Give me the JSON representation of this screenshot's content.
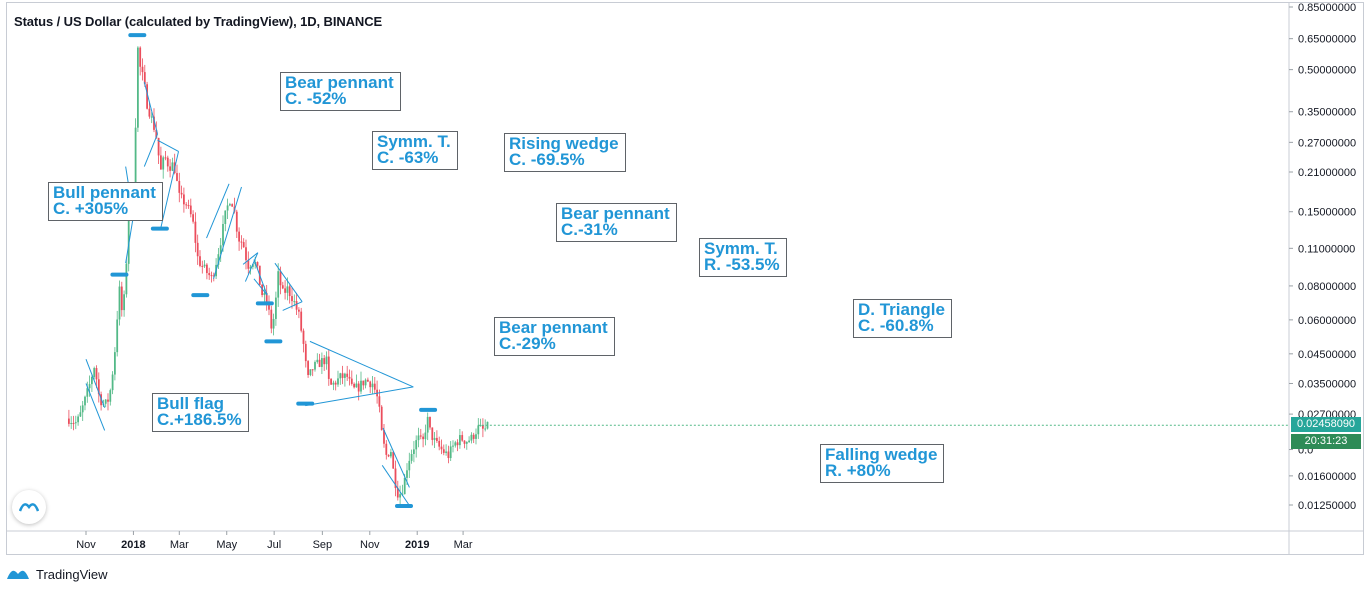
{
  "header": {
    "title": "Status / US Dollar (calculated by TradingView), 1D, BINANCE"
  },
  "footer": {
    "brand": "TradingView"
  },
  "price_axis": {
    "last_price": "0.02458090",
    "countdown": "20:31:23",
    "last_price_color": "#26a69a"
  },
  "colors": {
    "up_candle": "#53b987",
    "down_candle": "#eb4d5c",
    "pattern_line": "#2196d6",
    "marker": "#2196d6",
    "annotation_text": "#2196d6"
  },
  "chart_data": {
    "type": "candlestick",
    "title": "Status / US Dollar (calculated by TradingView), 1D, BINANCE",
    "y_scale": "log",
    "ylim": [
      0.0108,
      0.85
    ],
    "y_ticks": [
      {
        "value": 0.85,
        "label": "0.85000000"
      },
      {
        "value": 0.65,
        "label": "0.65000000"
      },
      {
        "value": 0.5,
        "label": "0.50000000"
      },
      {
        "value": 0.35,
        "label": "0.35000000"
      },
      {
        "value": 0.27,
        "label": "0.27000000"
      },
      {
        "value": 0.21,
        "label": "0.21000000"
      },
      {
        "value": 0.15,
        "label": "0.15000000"
      },
      {
        "value": 0.11,
        "label": "0.11000000"
      },
      {
        "value": 0.08,
        "label": "0.08000000"
      },
      {
        "value": 0.06,
        "label": "0.06000000"
      },
      {
        "value": 0.045,
        "label": "0.04500000"
      },
      {
        "value": 0.035,
        "label": "0.03500000"
      },
      {
        "value": 0.027,
        "label": "0.02700000"
      },
      {
        "value": 0.02,
        "label": "0.0"
      },
      {
        "value": 0.016,
        "label": "0.01600000"
      },
      {
        "value": 0.0125,
        "label": "0.01250000"
      }
    ],
    "x_ticks": [
      {
        "date": "2017-11-01",
        "label": "Nov",
        "bold": false
      },
      {
        "date": "2018-01-01",
        "label": "2018",
        "bold": true
      },
      {
        "date": "2018-03-01",
        "label": "Mar",
        "bold": false
      },
      {
        "date": "2018-05-01",
        "label": "May",
        "bold": false
      },
      {
        "date": "2018-07-01",
        "label": "Jul",
        "bold": false
      },
      {
        "date": "2018-09-01",
        "label": "Sep",
        "bold": false
      },
      {
        "date": "2018-11-01",
        "label": "Nov",
        "bold": false
      },
      {
        "date": "2019-01-01",
        "label": "2019",
        "bold": true
      },
      {
        "date": "2019-03-01",
        "label": "Mar",
        "bold": false
      }
    ],
    "price_path": [
      [
        "2017-10-10",
        0.026
      ],
      [
        "2017-10-20",
        0.025
      ],
      [
        "2017-10-25",
        0.027
      ],
      [
        "2017-11-05",
        0.034
      ],
      [
        "2017-11-12",
        0.041
      ],
      [
        "2017-11-18",
        0.031
      ],
      [
        "2017-11-25",
        0.029
      ],
      [
        "2017-12-01",
        0.031
      ],
      [
        "2017-12-05",
        0.038
      ],
      [
        "2017-12-10",
        0.052
      ],
      [
        "2017-12-13",
        0.082
      ],
      [
        "2017-12-17",
        0.065
      ],
      [
        "2017-12-21",
        0.074
      ],
      [
        "2017-12-24",
        0.115
      ],
      [
        "2017-12-27",
        0.195
      ],
      [
        "2017-12-31",
        0.16
      ],
      [
        "2018-01-04",
        0.33
      ],
      [
        "2018-01-06",
        0.62
      ],
      [
        "2018-01-10",
        0.5
      ],
      [
        "2018-01-14",
        0.46
      ],
      [
        "2018-01-18",
        0.38
      ],
      [
        "2018-01-23",
        0.34
      ],
      [
        "2018-01-30",
        0.29
      ],
      [
        "2018-02-05",
        0.21
      ],
      [
        "2018-02-10",
        0.24
      ],
      [
        "2018-02-16",
        0.22
      ],
      [
        "2018-02-22",
        0.225
      ],
      [
        "2018-03-01",
        0.17
      ],
      [
        "2018-03-10",
        0.16
      ],
      [
        "2018-03-18",
        0.14
      ],
      [
        "2018-03-25",
        0.1
      ],
      [
        "2018-03-30",
        0.095
      ],
      [
        "2018-04-05",
        0.09
      ],
      [
        "2018-04-12",
        0.085
      ],
      [
        "2018-04-18",
        0.1
      ],
      [
        "2018-04-24",
        0.12
      ],
      [
        "2018-04-30",
        0.15
      ],
      [
        "2018-05-06",
        0.17
      ],
      [
        "2018-05-10",
        0.155
      ],
      [
        "2018-05-16",
        0.12
      ],
      [
        "2018-05-22",
        0.115
      ],
      [
        "2018-05-28",
        0.095
      ],
      [
        "2018-06-05",
        0.1
      ],
      [
        "2018-06-10",
        0.09
      ],
      [
        "2018-06-15",
        0.075
      ],
      [
        "2018-06-22",
        0.07
      ],
      [
        "2018-06-28",
        0.055
      ],
      [
        "2018-07-02",
        0.065
      ],
      [
        "2018-07-06",
        0.088
      ],
      [
        "2018-07-12",
        0.075
      ],
      [
        "2018-07-18",
        0.078
      ],
      [
        "2018-07-25",
        0.072
      ],
      [
        "2018-08-02",
        0.062
      ],
      [
        "2018-08-08",
        0.048
      ],
      [
        "2018-08-13",
        0.036
      ],
      [
        "2018-08-20",
        0.04
      ],
      [
        "2018-08-30",
        0.042
      ],
      [
        "2018-09-06",
        0.043
      ],
      [
        "2018-09-10",
        0.034
      ],
      [
        "2018-09-16",
        0.035
      ],
      [
        "2018-09-25",
        0.037
      ],
      [
        "2018-10-03",
        0.037
      ],
      [
        "2018-10-10",
        0.033
      ],
      [
        "2018-10-18",
        0.034
      ],
      [
        "2018-10-26",
        0.036
      ],
      [
        "2018-11-05",
        0.035
      ],
      [
        "2018-11-12",
        0.03
      ],
      [
        "2018-11-17",
        0.022
      ],
      [
        "2018-11-22",
        0.019
      ],
      [
        "2018-11-28",
        0.02
      ],
      [
        "2018-12-02",
        0.016
      ],
      [
        "2018-12-08",
        0.0135
      ],
      [
        "2018-12-14",
        0.0145
      ],
      [
        "2018-12-20",
        0.018
      ],
      [
        "2018-12-26",
        0.02
      ],
      [
        "2019-01-02",
        0.022
      ],
      [
        "2019-01-08",
        0.021
      ],
      [
        "2019-01-14",
        0.026
      ],
      [
        "2019-01-18",
        0.023
      ],
      [
        "2019-01-25",
        0.021
      ],
      [
        "2019-02-01",
        0.02
      ],
      [
        "2019-02-10",
        0.019
      ],
      [
        "2019-02-18",
        0.021
      ],
      [
        "2019-02-26",
        0.022
      ],
      [
        "2019-03-05",
        0.0215
      ],
      [
        "2019-03-12",
        0.022
      ],
      [
        "2019-03-20",
        0.024
      ],
      [
        "2019-03-28",
        0.0235
      ],
      [
        "2019-04-04",
        0.0246
      ]
    ],
    "annotations": [
      {
        "id": "bull-pennant",
        "lines": [
          "Bull pennant",
          "C. +305%"
        ]
      },
      {
        "id": "bull-flag",
        "lines": [
          "Bull flag",
          "C.+186.5%"
        ]
      },
      {
        "id": "bear-pennant-1",
        "lines": [
          "Bear pennant",
          "C. -52%"
        ]
      },
      {
        "id": "symm-t-1",
        "lines": [
          "Symm. T.",
          "C. -63%"
        ]
      },
      {
        "id": "rising-wedge",
        "lines": [
          "Rising wedge",
          "C. -69.5%"
        ]
      },
      {
        "id": "bear-pennant-2",
        "lines": [
          "Bear pennant",
          "C.-31%"
        ]
      },
      {
        "id": "bear-pennant-3",
        "lines": [
          "Bear pennant",
          "C.-29%"
        ]
      },
      {
        "id": "symm-t-2",
        "lines": [
          "Symm. T.",
          "R. -53.5%"
        ]
      },
      {
        "id": "d-triangle",
        "lines": [
          "D. Triangle",
          "C. -60.8%"
        ]
      },
      {
        "id": "falling-wedge",
        "lines": [
          "Falling wedge",
          "R. +80%"
        ]
      }
    ],
    "pattern_lines": [
      [
        [
          "2017-11-01",
          0.043
        ],
        [
          "2017-11-25",
          0.0285
        ]
      ],
      [
        [
          "2017-11-01",
          0.035
        ],
        [
          "2017-11-25",
          0.0235
        ]
      ],
      [
        [
          "2017-12-22",
          0.22
        ],
        [
          "2018-01-01",
          0.145
        ]
      ],
      [
        [
          "2017-12-22",
          0.097
        ],
        [
          "2018-01-01",
          0.145
        ]
      ],
      [
        [
          "2018-01-15",
          0.45
        ],
        [
          "2018-02-01",
          0.29
        ]
      ],
      [
        [
          "2018-01-15",
          0.22
        ],
        [
          "2018-02-01",
          0.29
        ]
      ],
      [
        [
          "2018-02-01",
          0.275
        ],
        [
          "2018-02-28",
          0.25
        ]
      ],
      [
        [
          "2018-02-05",
          0.13
        ],
        [
          "2018-02-28",
          0.25
        ]
      ],
      [
        [
          "2018-04-05",
          0.12
        ],
        [
          "2018-05-04",
          0.19
        ]
      ],
      [
        [
          "2018-04-14",
          0.085
        ],
        [
          "2018-05-20",
          0.185
        ]
      ],
      [
        [
          "2018-05-22",
          0.096
        ],
        [
          "2018-06-10",
          0.106
        ]
      ],
      [
        [
          "2018-05-25",
          0.083
        ],
        [
          "2018-06-10",
          0.106
        ]
      ],
      [
        [
          "2018-06-05",
          0.085
        ],
        [
          "2018-06-22",
          0.074
        ]
      ],
      [
        [
          "2018-06-05",
          0.1
        ],
        [
          "2018-06-22",
          0.074
        ]
      ],
      [
        [
          "2018-07-02",
          0.097
        ],
        [
          "2018-08-06",
          0.07
        ]
      ],
      [
        [
          "2018-07-12",
          0.065
        ],
        [
          "2018-08-06",
          0.07
        ]
      ],
      [
        [
          "2018-08-16",
          0.05
        ],
        [
          "2018-12-27",
          0.034
        ]
      ],
      [
        [
          "2018-08-10",
          0.029
        ],
        [
          "2018-12-27",
          0.034
        ]
      ],
      [
        [
          "2018-11-18",
          0.024
        ],
        [
          "2018-12-22",
          0.0145
        ]
      ],
      [
        [
          "2018-11-17",
          0.0175
        ],
        [
          "2018-12-24",
          0.0122
        ]
      ]
    ],
    "markers": [
      {
        "date": "2017-12-14",
        "value": 0.088
      },
      {
        "date": "2018-01-06",
        "value": 0.67
      },
      {
        "date": "2018-02-04",
        "value": 0.13
      },
      {
        "date": "2018-03-28",
        "value": 0.074
      },
      {
        "date": "2018-06-19",
        "value": 0.069
      },
      {
        "date": "2018-06-30",
        "value": 0.05
      },
      {
        "date": "2018-08-10",
        "value": 0.0295
      },
      {
        "date": "2018-12-15",
        "value": 0.0124
      },
      {
        "date": "2019-01-15",
        "value": 0.028
      }
    ]
  }
}
